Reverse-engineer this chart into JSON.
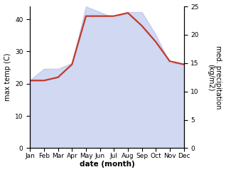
{
  "months": [
    "Jan",
    "Feb",
    "Mar",
    "Apr",
    "May",
    "Jun",
    "Jul",
    "Aug",
    "Sep",
    "Oct",
    "Nov",
    "Dec"
  ],
  "month_positions": [
    1,
    2,
    3,
    4,
    5,
    6,
    7,
    8,
    9,
    10,
    11,
    12
  ],
  "max_temp": [
    21,
    21,
    22,
    26,
    41,
    41,
    41,
    42,
    38,
    33,
    27,
    26
  ],
  "precip_kg": [
    12,
    14,
    14,
    15,
    25,
    24,
    23,
    24,
    24,
    20,
    15,
    15
  ],
  "temp_color": "#c0392b",
  "precip_color": "#8090c8",
  "precip_fill_color": "#aab8e8",
  "precip_fill_alpha": 0.55,
  "ylabel_left": "max temp (C)",
  "ylabel_right": "med. precipitation\n(kg/m2)",
  "xlabel": "date (month)",
  "ylim_left": [
    0,
    44
  ],
  "ylim_right": [
    0,
    25
  ],
  "yticks_left": [
    0,
    10,
    20,
    30,
    40
  ],
  "yticks_right": [
    0,
    5,
    10,
    15,
    20,
    25
  ],
  "label_fontsize": 7,
  "tick_fontsize": 6.5,
  "xlabel_fontsize": 7.5,
  "linewidth": 1.6
}
